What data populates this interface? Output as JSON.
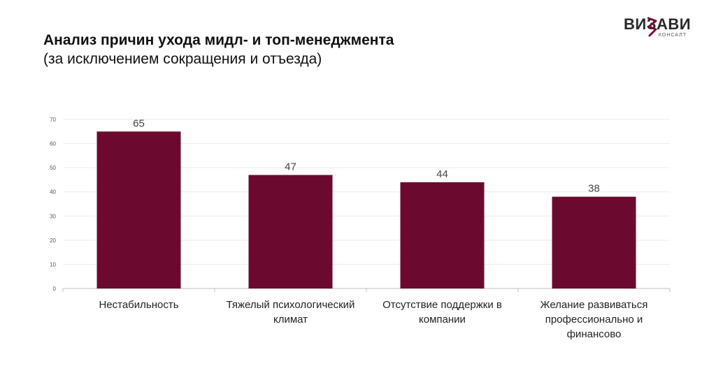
{
  "header": {
    "title": "Анализ причин ухода мидл- и топ-менеджмента",
    "subtitle": "(за исключением сокращения и отъезда)"
  },
  "logo": {
    "name": "ВИЗАВИ",
    "sub": "КОНСАЛТ",
    "accent_color": "#7a1030"
  },
  "chart_data": {
    "type": "bar",
    "categories": [
      "Нестабильность",
      "Тяжелый психологический климат",
      "Отсутствие поддержки в компании",
      "Желание развиваться профессионально и финансово"
    ],
    "values": [
      65,
      47,
      44,
      38
    ],
    "ylim": [
      0,
      70
    ],
    "yticks": [
      0,
      10,
      20,
      30,
      40,
      50,
      60,
      70
    ],
    "grid": true,
    "legend": "none",
    "bar_color": "#6b0a2e"
  }
}
